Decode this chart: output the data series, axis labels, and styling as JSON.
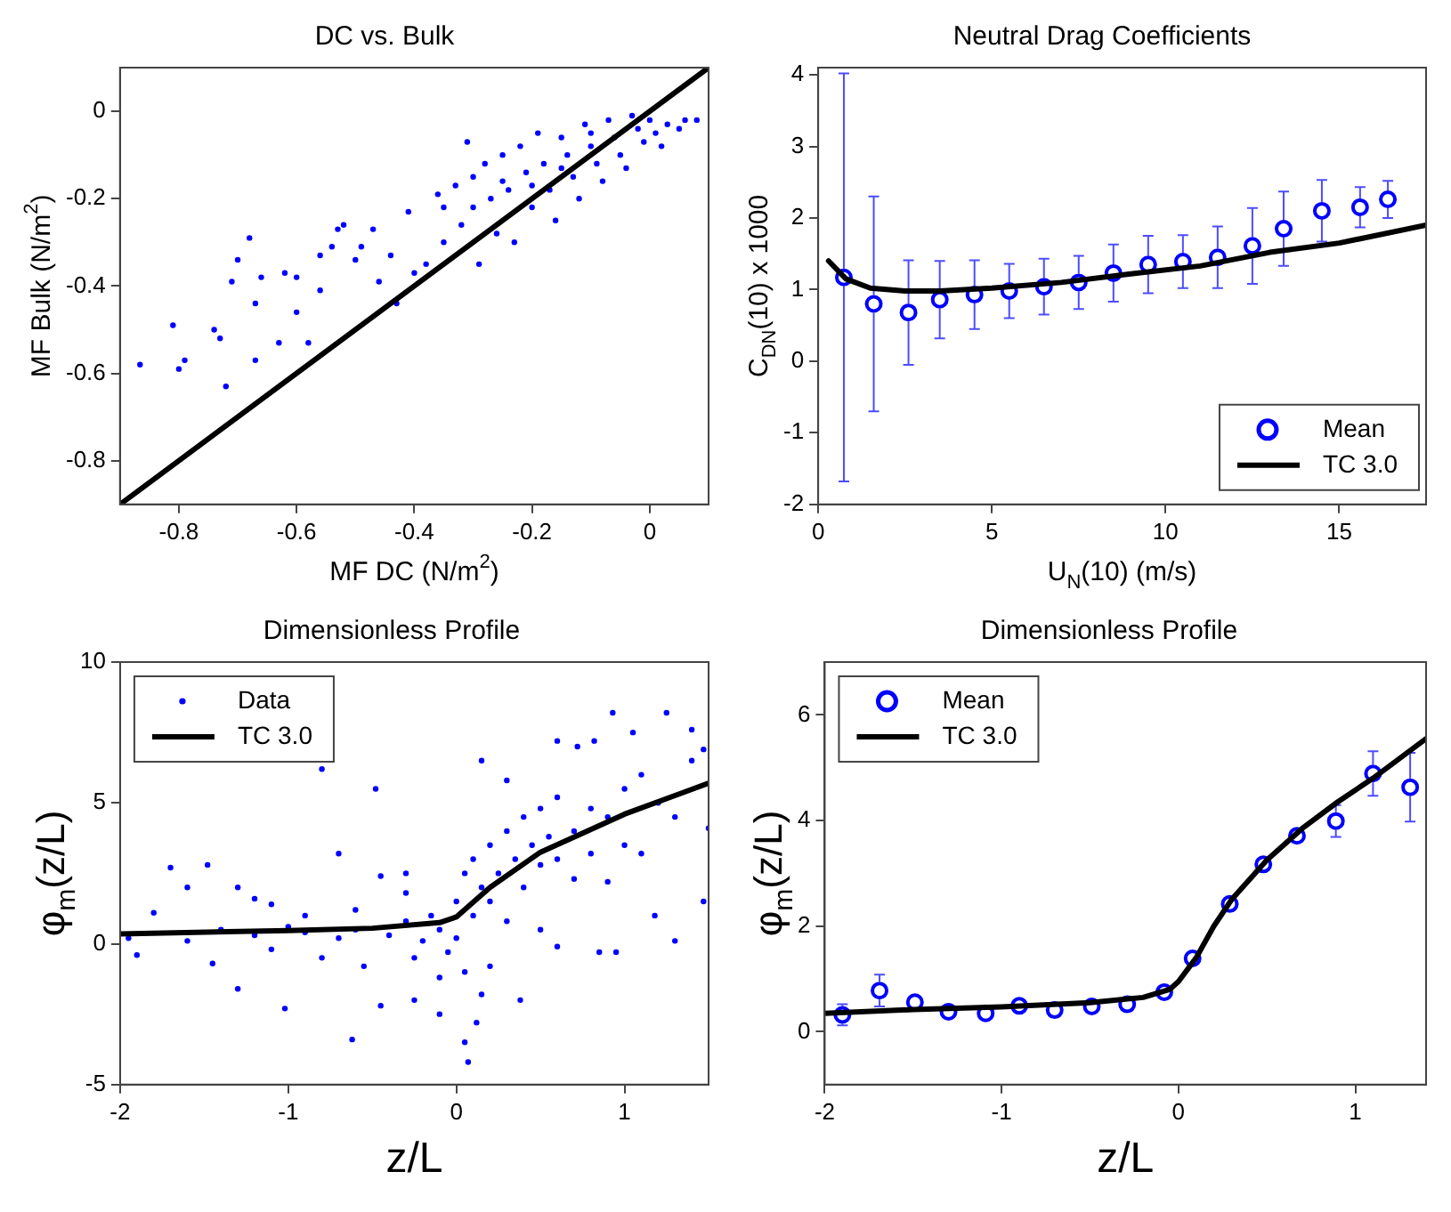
{
  "chart_data": [
    {
      "type": "scatter",
      "title": "DC vs. Bulk",
      "xlabel": "MF DC (N/m$^{2}$)",
      "ylabel": "MF Bulk (N/m$^{2}$)",
      "xlim": [
        -0.9,
        0.1
      ],
      "ylim": [
        -0.9,
        0.1
      ],
      "xticks": [
        -0.8,
        -0.6,
        -0.4,
        -0.2,
        0
      ],
      "yticks": [
        -0.8,
        -0.6,
        -0.4,
        -0.2,
        0
      ],
      "grid": false,
      "legend": false,
      "series": [
        {
          "type": "scatter",
          "color": "#0000ff",
          "marker": "circle",
          "x": [
            -0.866,
            -0.81,
            -0.8,
            -0.79,
            -0.73,
            -0.74,
            -0.72,
            -0.71,
            -0.7,
            -0.68,
            -0.67,
            -0.67,
            -0.66,
            -0.63,
            -0.62,
            -0.6,
            -0.6,
            -0.58,
            -0.56,
            -0.56,
            -0.54,
            -0.53,
            -0.52,
            -0.5,
            -0.49,
            -0.47,
            -0.46,
            -0.44,
            -0.43,
            -0.41,
            -0.4,
            -0.38,
            -0.36,
            -0.35,
            -0.33,
            -0.32,
            -0.31,
            -0.3,
            -0.29,
            -0.28,
            -0.27,
            -0.26,
            -0.25,
            -0.24,
            -0.23,
            -0.22,
            -0.21,
            -0.2,
            -0.19,
            -0.18,
            -0.17,
            -0.16,
            -0.15,
            -0.14,
            -0.13,
            -0.12,
            -0.11,
            -0.1,
            -0.09,
            -0.08,
            -0.07,
            -0.06,
            -0.05,
            -0.04,
            -0.03,
            -0.02,
            -0.01,
            0,
            0.01,
            0.02,
            0.03,
            0.05,
            0.06,
            0.08,
            -0.2,
            -0.15,
            -0.1,
            -0.25,
            -0.3,
            -0.35
          ],
          "values": [
            -0.58,
            -0.49,
            -0.59,
            -0.57,
            -0.52,
            -0.5,
            -0.63,
            -0.39,
            -0.34,
            -0.29,
            -0.44,
            -0.57,
            -0.38,
            -0.53,
            -0.37,
            -0.38,
            -0.46,
            -0.53,
            -0.41,
            -0.33,
            -0.31,
            -0.27,
            -0.26,
            -0.34,
            -0.31,
            -0.27,
            -0.39,
            -0.33,
            -0.44,
            -0.23,
            -0.37,
            -0.35,
            -0.19,
            -0.3,
            -0.17,
            -0.26,
            -0.07,
            -0.22,
            -0.35,
            -0.12,
            -0.2,
            -0.28,
            -0.1,
            -0.18,
            -0.3,
            -0.08,
            -0.14,
            -0.22,
            -0.05,
            -0.12,
            -0.18,
            -0.25,
            -0.06,
            -0.1,
            -0.15,
            -0.2,
            -0.03,
            -0.08,
            -0.12,
            -0.16,
            -0.02,
            -0.06,
            -0.1,
            -0.13,
            -0.01,
            -0.04,
            -0.07,
            -0.02,
            -0.05,
            -0.08,
            -0.03,
            -0.04,
            -0.02,
            -0.02,
            -0.17,
            -0.13,
            -0.05,
            -0.16,
            -0.15,
            -0.22
          ]
        },
        {
          "type": "line",
          "color": "#000000",
          "marker": "none",
          "line_style": "solid",
          "x": [
            -0.9,
            0.1
          ],
          "values": [
            -0.9,
            0.1
          ]
        }
      ]
    },
    {
      "type": "scatter",
      "title": "Neutral Drag Coefficients",
      "xlabel": "U$_{N}$(10) (m/s)",
      "ylabel": "C$_{DN}$(10) x 1000",
      "xlim": [
        0,
        17.5
      ],
      "ylim": [
        -2,
        4.1
      ],
      "xticks": [
        0,
        5,
        10,
        15
      ],
      "yticks": [
        -2,
        -1,
        0,
        1,
        2,
        3,
        4
      ],
      "grid": false,
      "legend": "bottom right",
      "series": [
        {
          "type": "scatter",
          "name": "Mean",
          "color": "#0000ff",
          "marker": "circle",
          "x": [
            0.74,
            1.6,
            2.6,
            3.5,
            4.5,
            5.5,
            6.5,
            7.5,
            8.5,
            9.5,
            10.5,
            11.5,
            12.5,
            13.4,
            14.5,
            15.6,
            16.4
          ],
          "values": [
            1.17,
            0.8,
            0.68,
            0.86,
            0.93,
            0.98,
            1.04,
            1.1,
            1.23,
            1.35,
            1.39,
            1.45,
            1.61,
            1.85,
            2.1,
            2.15,
            2.26
          ],
          "errors": [
            2.85,
            1.5,
            0.73,
            0.54,
            0.48,
            0.38,
            0.39,
            0.37,
            0.4,
            0.4,
            0.37,
            0.43,
            0.53,
            0.52,
            0.43,
            0.28,
            0.26
          ]
        },
        {
          "type": "line",
          "name": "TC 3.0",
          "color": "#000000",
          "marker": "none",
          "line_style": "solid",
          "x": [
            0.3,
            0.8,
            1.5,
            2.5,
            3.5,
            5,
            7,
            9,
            11,
            13,
            15,
            17.5
          ],
          "values": [
            1.4,
            1.15,
            1.02,
            0.98,
            0.98,
            1.02,
            1.1,
            1.22,
            1.33,
            1.52,
            1.65,
            1.9
          ]
        }
      ]
    },
    {
      "type": "scatter",
      "title": "Dimensionless Profile",
      "xlabel": "z/L",
      "ylabel": "φ$_{m}$(z/L)",
      "xlim": [
        -2,
        1.5
      ],
      "ylim": [
        -5,
        10
      ],
      "xticks": [
        -2,
        -1,
        0,
        1
      ],
      "yticks": [
        -5,
        0,
        5,
        10
      ],
      "grid": false,
      "legend": "top left",
      "series": [
        {
          "type": "scatter",
          "name": "Data",
          "color": "#0000ff",
          "marker": "circle",
          "x": [
            -0.8,
            -0.48,
            0.15,
            0.3,
            0.6,
            0.72,
            0.82,
            0.93,
            1.05,
            1.25,
            1.4,
            1.47,
            1.5,
            1.47,
            1.3,
            1.18,
            0.95,
            0.85,
            0.6,
            0.5,
            0.38,
            0.12,
            0.05,
            0.07,
            -0.1,
            -0.25,
            -0.45,
            -0.62,
            -1.02,
            -1.3,
            -1.45,
            -1.7,
            -1.6,
            -1.48,
            -1.3,
            -1.8,
            -1.9,
            -1.95,
            -0.7,
            -0.45,
            -0.3,
            -1.1,
            -1.2,
            -0.9,
            -0.6,
            -0.3,
            -0.8,
            -0.55,
            -1.1,
            -1.6,
            -0.4,
            -0.3,
            -0.2,
            -0.15,
            -0.1,
            -0.05,
            0,
            0,
            0.05,
            0.05,
            0.1,
            0.1,
            0.15,
            0.2,
            0.2,
            0.25,
            0.3,
            0.3,
            0.35,
            0.4,
            0.4,
            0.45,
            0.5,
            0.5,
            0.55,
            0.6,
            0.6,
            0.7,
            0.7,
            0.8,
            0.8,
            0.9,
            0.9,
            1,
            1,
            1.1,
            1.1,
            1.2,
            1.3,
            1.4,
            -0.6,
            -0.7,
            -0.9,
            -1,
            -1.2,
            -1.4,
            -0.25,
            -0.1,
            0.2,
            0.15
          ],
          "values": [
            6.2,
            5.5,
            6.5,
            5.8,
            7.2,
            7,
            7.2,
            8.2,
            7.5,
            8.2,
            7.6,
            6.9,
            4.1,
            1.5,
            0.1,
            1,
            -0.3,
            -0.3,
            -0.1,
            0.5,
            -2,
            -2.8,
            -3.5,
            -4.2,
            -2.5,
            -2,
            -2.2,
            -3.4,
            -2.3,
            -1.6,
            -0.7,
            2.7,
            2,
            2.8,
            2,
            1.1,
            -0.4,
            0.2,
            3.2,
            2.4,
            2.5,
            1.4,
            1.6,
            1,
            1.2,
            1.8,
            -0.5,
            -0.8,
            -0.2,
            0.1,
            0.3,
            0.8,
            0.1,
            1,
            0.5,
            -0.3,
            0.2,
            1.5,
            2.5,
            -1,
            3,
            1,
            2,
            3.5,
            1.5,
            2.5,
            4,
            0.8,
            3,
            4.5,
            2,
            3.5,
            4.8,
            2.8,
            3.8,
            5.2,
            3,
            4,
            2.3,
            4.8,
            3.2,
            4.5,
            2.2,
            5.5,
            3.5,
            6,
            3.2,
            5,
            4.5,
            6.5,
            0.5,
            0.2,
            0.4,
            0.6,
            0.3,
            0.5,
            -0.5,
            -1.2,
            -0.8,
            -1.8
          ]
        },
        {
          "type": "line",
          "name": "TC 3.0",
          "color": "#000000",
          "marker": "none",
          "line_style": "solid",
          "x": [
            -2,
            -1,
            -0.5,
            -0.1,
            0,
            0.2,
            0.5,
            1,
            1.5
          ],
          "values": [
            0.35,
            0.47,
            0.55,
            0.75,
            0.95,
            2,
            3.25,
            4.6,
            5.7
          ]
        }
      ]
    },
    {
      "type": "scatter",
      "title": "Dimensionless Profile",
      "xlabel": "z/L",
      "ylabel": "φ$_{m}$(z/L)",
      "xlim": [
        -2,
        1.4
      ],
      "ylim": [
        -1,
        7
      ],
      "xticks": [
        -2,
        -1,
        0,
        1
      ],
      "yticks": [
        0,
        2,
        4,
        6
      ],
      "grid": false,
      "legend": "top left",
      "series": [
        {
          "type": "scatter",
          "name": "Mean",
          "color": "#0000ff",
          "marker": "circle",
          "x": [
            -1.9,
            -1.69,
            -1.49,
            -1.3,
            -1.09,
            -0.9,
            -0.7,
            -0.49,
            -0.29,
            -0.08,
            0.08,
            0.29,
            0.48,
            0.67,
            0.89,
            1.1,
            1.31
          ],
          "values": [
            0.32,
            0.78,
            0.56,
            0.38,
            0.35,
            0.49,
            0.41,
            0.48,
            0.52,
            0.75,
            1.39,
            2.42,
            3.17,
            3.71,
            3.99,
            4.89,
            4.63
          ],
          "errors": [
            0.2,
            0.3,
            null,
            null,
            null,
            null,
            null,
            null,
            null,
            null,
            null,
            null,
            null,
            null,
            0.3,
            0.42,
            0.65
          ]
        },
        {
          "type": "line",
          "name": "TC 3.0",
          "color": "#000000",
          "marker": "none",
          "line_style": "solid",
          "x": [
            -2,
            -1.5,
            -1,
            -0.5,
            -0.2,
            -0.05,
            0,
            0.1,
            0.2,
            0.3,
            0.5,
            0.7,
            0.9,
            1.1,
            1.4
          ],
          "values": [
            0.35,
            0.42,
            0.47,
            0.55,
            0.65,
            0.8,
            0.95,
            1.4,
            2,
            2.5,
            3.25,
            3.85,
            4.35,
            4.8,
            5.55
          ]
        }
      ]
    }
  ]
}
